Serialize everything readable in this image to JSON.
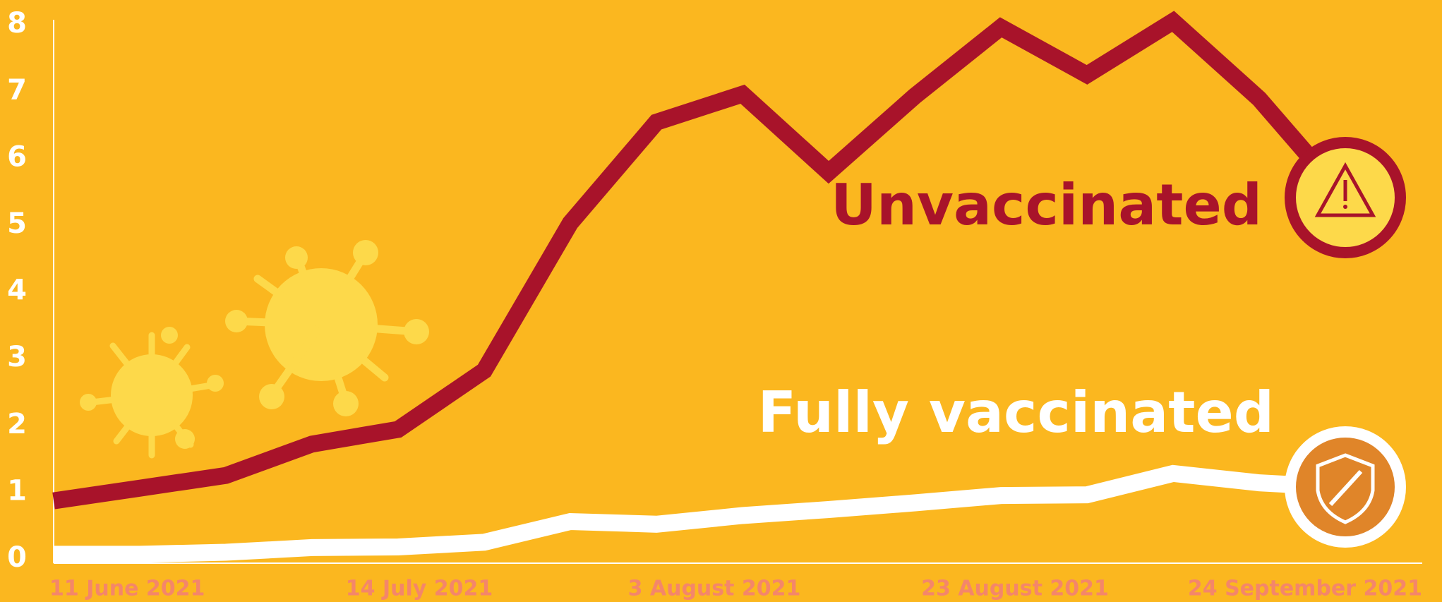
{
  "chart_data": {
    "type": "line",
    "categories": [
      "11 June 2021",
      null,
      null,
      null,
      "14 July 2021",
      null,
      null,
      null,
      "3 August 2021",
      null,
      null,
      "23 August 2021",
      null,
      null,
      null,
      "24 September 2021"
    ],
    "series": [
      {
        "name": "Unvaccinated",
        "color": "#a8132a",
        "values": [
          0.87,
          1.06,
          1.25,
          1.72,
          1.94,
          2.82,
          5.03,
          6.54,
          6.96,
          5.79,
          6.93,
          7.96,
          7.25,
          8.05,
          6.89,
          5.4
        ]
      },
      {
        "name": "Fully vaccinated",
        "color": "#ffffff",
        "values": [
          0.07,
          0.07,
          0.1,
          0.17,
          0.18,
          0.25,
          0.56,
          0.52,
          0.65,
          0.74,
          0.84,
          0.95,
          0.96,
          1.28,
          1.14,
          1.07
        ]
      }
    ],
    "ylim": [
      0,
      8
    ],
    "yticks": [
      0,
      1,
      2,
      3,
      4,
      5,
      6,
      7,
      8
    ]
  }
}
